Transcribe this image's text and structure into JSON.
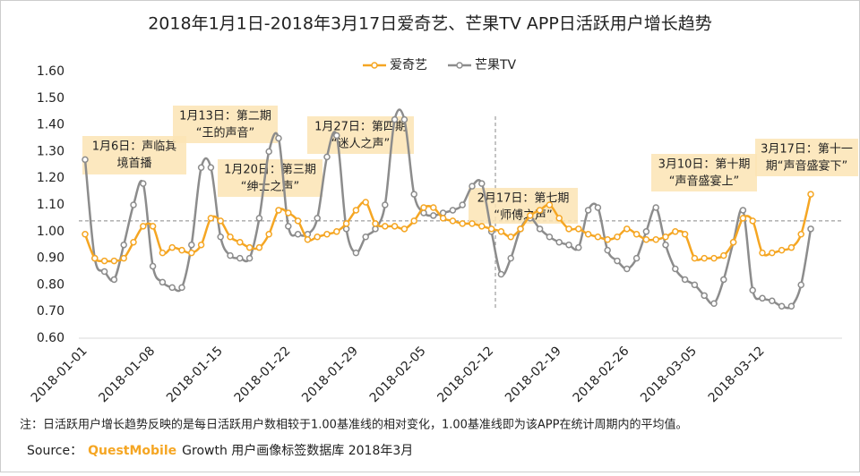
{
  "chart_data": {
    "type": "line",
    "title": "2018年1月1日-2018年3月17日爱奇艺、芒果TV APP日活跃用户增长趋势",
    "categories": [
      "2018-01-01",
      null,
      null,
      null,
      null,
      null,
      null,
      "2018-01-08",
      null,
      null,
      null,
      null,
      null,
      null,
      "2018-01-15",
      null,
      null,
      null,
      null,
      null,
      null,
      "2018-01-22",
      null,
      null,
      null,
      null,
      null,
      null,
      "2018-01-29",
      null,
      null,
      null,
      null,
      null,
      null,
      "2018-02-05",
      null,
      null,
      null,
      null,
      null,
      null,
      "2018-02-12",
      null,
      null,
      null,
      null,
      null,
      null,
      "2018-02-19",
      null,
      null,
      null,
      null,
      null,
      null,
      "2018-02-26",
      null,
      null,
      null,
      null,
      null,
      null,
      "2018-03-05",
      null,
      null,
      null,
      null,
      null,
      null,
      "2018-03-12",
      null,
      null,
      null,
      null,
      null
    ],
    "series": [
      {
        "name": "爱奇艺",
        "color": "#f5a623",
        "values": [
          0.99,
          0.9,
          0.89,
          0.89,
          0.9,
          0.96,
          1.02,
          1.02,
          0.92,
          0.94,
          0.93,
          0.92,
          0.95,
          1.05,
          1.04,
          0.98,
          0.96,
          0.94,
          0.94,
          0.99,
          1.08,
          1.07,
          1.04,
          0.97,
          0.98,
          0.99,
          1.0,
          1.03,
          1.08,
          1.11,
          1.03,
          1.02,
          1.02,
          1.01,
          1.04,
          1.09,
          1.09,
          1.05,
          1.04,
          1.03,
          1.03,
          1.02,
          1.01,
          1.0,
          0.98,
          1.01,
          1.06,
          1.08,
          1.1,
          1.05,
          1.01,
          1.01,
          0.99,
          0.98,
          0.97,
          0.98,
          1.01,
          0.99,
          0.97,
          0.97,
          0.98,
          1.0,
          0.99,
          0.9,
          0.9,
          0.9,
          0.91,
          0.96,
          1.05,
          1.04,
          0.92,
          0.92,
          0.93,
          0.94,
          0.99,
          1.14
        ]
      },
      {
        "name": "芒果TV",
        "color": "#8c8c8c",
        "values": [
          1.27,
          0.9,
          0.85,
          0.82,
          0.95,
          1.1,
          1.18,
          0.87,
          0.81,
          0.79,
          0.79,
          0.95,
          1.24,
          1.24,
          0.98,
          0.91,
          0.9,
          0.9,
          1.05,
          1.3,
          1.35,
          1.02,
          0.99,
          0.99,
          1.05,
          1.28,
          1.36,
          1.01,
          0.92,
          0.98,
          1.01,
          1.1,
          1.42,
          1.42,
          1.14,
          1.07,
          1.06,
          1.07,
          1.08,
          1.1,
          1.17,
          1.18,
          1.0,
          0.84,
          0.9,
          1.01,
          1.05,
          1.01,
          0.98,
          0.96,
          0.95,
          0.94,
          1.08,
          1.09,
          0.93,
          0.89,
          0.86,
          0.9,
          1.0,
          1.09,
          0.95,
          0.86,
          0.82,
          0.8,
          0.76,
          0.73,
          0.82,
          0.96,
          1.08,
          0.78,
          0.75,
          0.74,
          0.72,
          0.72,
          0.8,
          1.01
        ]
      }
    ],
    "ylim": [
      0.6,
      1.6
    ],
    "yticks": [
      {
        "value": 0.6,
        "label": "0.60"
      },
      {
        "value": 0.7,
        "label": "0.70"
      },
      {
        "value": 0.8,
        "label": "0.80"
      },
      {
        "value": 0.9,
        "label": "0.90"
      },
      {
        "value": 1.0,
        "label": "1.00"
      },
      {
        "value": 1.1,
        "label": "1.10"
      },
      {
        "value": 1.2,
        "label": "1.20"
      },
      {
        "value": 1.3,
        "label": "1.30"
      },
      {
        "value": 1.4,
        "label": "1.40"
      },
      {
        "value": 1.5,
        "label": "1.50"
      },
      {
        "value": 1.6,
        "label": "1.60"
      }
    ],
    "reference_line": 1.04,
    "legend": "top",
    "annotations": [
      [
        "1月6日：声临其",
        "境首播"
      ],
      [
        "1月13日：第二期",
        "“王的声音”"
      ],
      [
        "1月20日：第三期",
        "“绅士之声”"
      ],
      [
        "1月27日：第四期",
        "“迷人之声”"
      ],
      [
        "2月17日：第七期",
        "“师傅之声”"
      ],
      [
        "3月10日：第十期",
        "“声音盛宴上”"
      ],
      [
        "3月17日：第十一",
        "期“声音盛宴下”"
      ]
    ],
    "note": "注：日活跃用户增长趋势反映的是每日活跃用户数相较于1.00基准线的相对变化，1.00基准线即为该APP在统计周期内的平均值。",
    "source": [
      "Source：",
      "QuestMobile",
      "Growth 用户画像标签数据库 2018年3月"
    ]
  }
}
